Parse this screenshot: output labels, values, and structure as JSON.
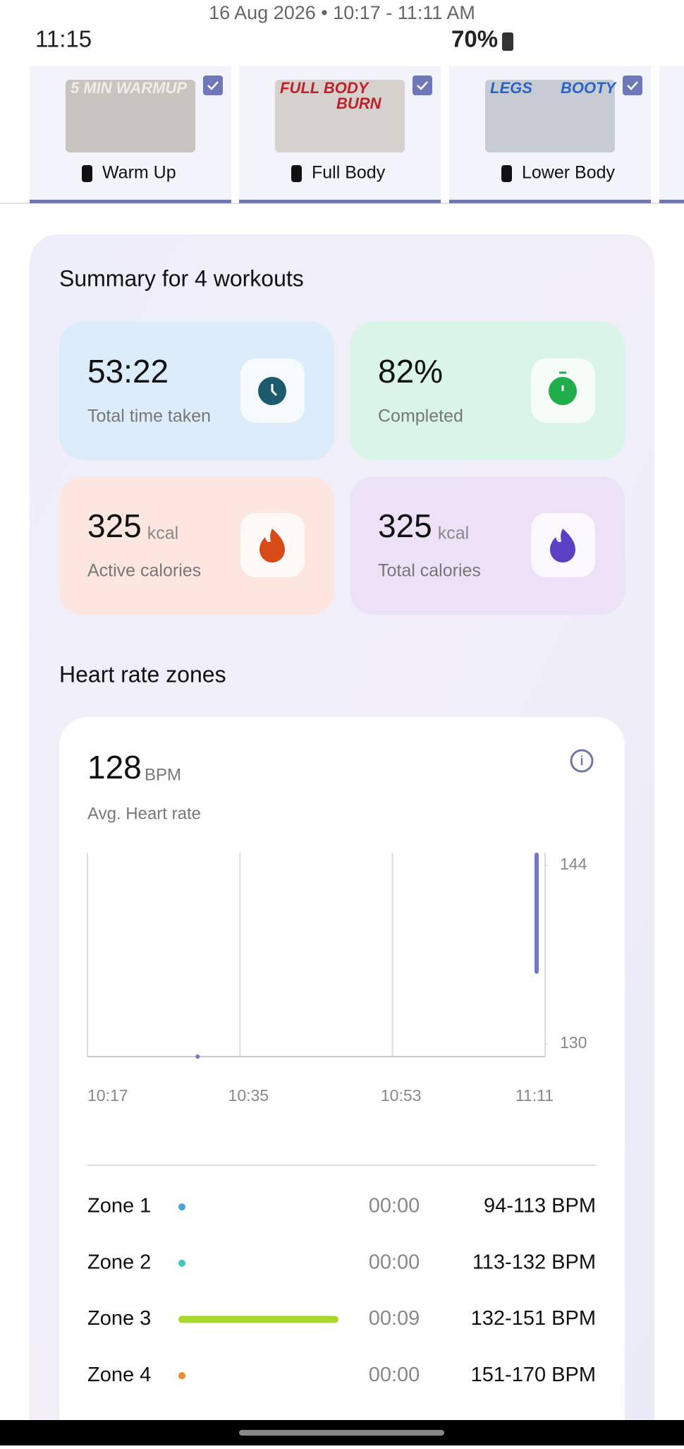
{
  "status_bar": {
    "date_range": "16 Aug 2026 • 10:17 - 11:11 AM",
    "time": "11:15",
    "battery": "70%"
  },
  "workouts": [
    {
      "thumbnail_lines": [
        "5 MIN WARMUP"
      ],
      "label": "Warm Up"
    },
    {
      "thumbnail_lines": [
        "FULL BODY",
        "BURN"
      ],
      "label": "Full Body"
    },
    {
      "thumbnail_lines": [
        "LEGS",
        "BOOTY"
      ],
      "label": "Lower Body"
    }
  ],
  "summary": {
    "title": "Summary for 4 workouts",
    "cards": [
      {
        "value": "53:22",
        "label": "Total time taken",
        "color": "#dcecfb",
        "icon_color": "#1e5a6e"
      },
      {
        "value": "82%",
        "label": "Completed",
        "color": "#d9f5e7",
        "icon_color": "#1fae4a"
      },
      {
        "value": 325,
        "unit": "kcal",
        "label": "Active calories",
        "color": "#fde6df",
        "icon_color": "#d84a16"
      },
      {
        "value": 325,
        "unit": "kcal",
        "label": "Total calories",
        "color": "#ece1f6",
        "icon_color": "#5b3fc4"
      }
    ]
  },
  "heart_rate": {
    "title": "Heart rate zones",
    "average": 128,
    "unit": "BPM",
    "average_label": "Avg. Heart rate",
    "chart": {
      "ylim": [
        129,
        145
      ],
      "yticks": [
        130,
        144
      ],
      "xticks": [
        "10:17",
        "10:35",
        "10:53",
        "11:11"
      ],
      "color": "#6f79c4",
      "samples": {
        "x": [
          "10:30",
          "11:10"
        ],
        "min": [
          129,
          135.5
        ],
        "max": [
          129,
          145
        ]
      }
    },
    "zones": [
      {
        "name": "Zone 1",
        "duration": "00:00",
        "range": "94-113 BPM",
        "color": "#4aa3d8"
      },
      {
        "name": "Zone 2",
        "duration": "00:00",
        "range": "113-132 BPM",
        "color": "#3cc8c0"
      },
      {
        "name": "Zone 3",
        "duration": "00:09",
        "range": "132-151 BPM",
        "color": "#a8d82a"
      },
      {
        "name": "Zone 4",
        "duration": "00:00",
        "range": "151-170 BPM",
        "color": "#f08a2a"
      }
    ]
  }
}
